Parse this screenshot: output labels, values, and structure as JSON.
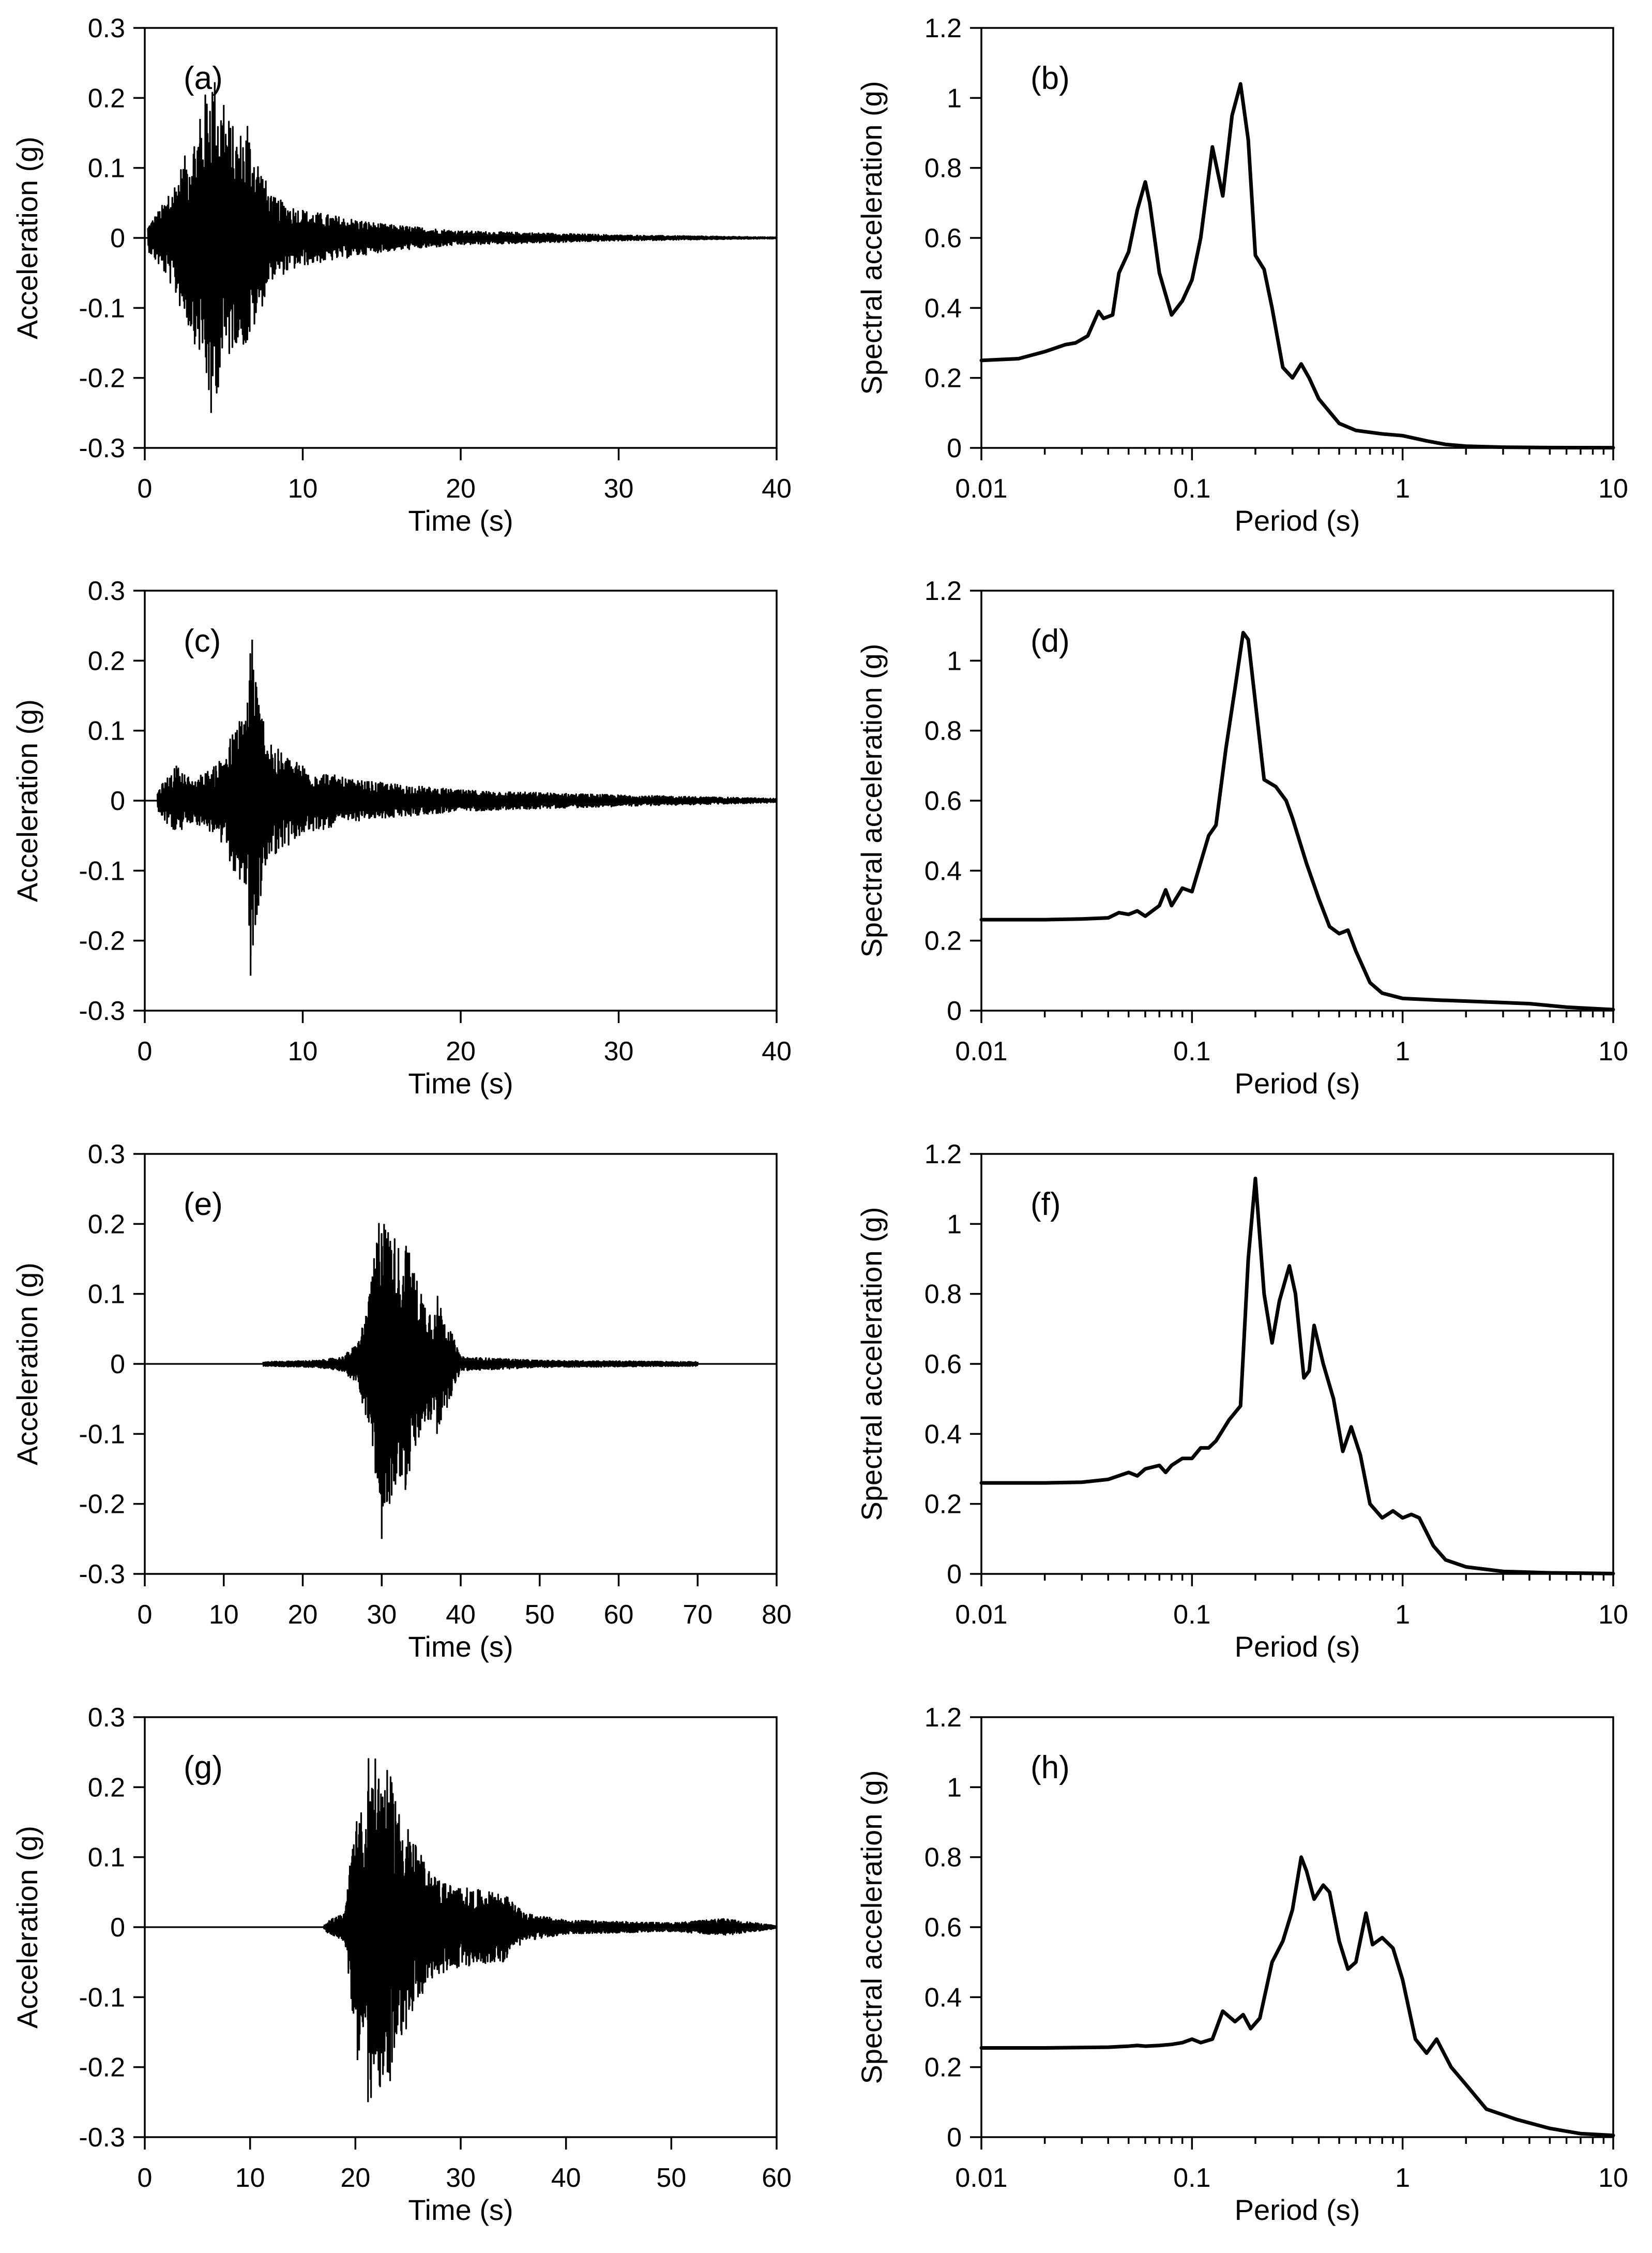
{
  "chart_data": [
    {
      "id": "a",
      "type": "line",
      "label": "(a)",
      "xlabel": "Time (s)",
      "ylabel": "Acceleration (g)",
      "xscale": "linear",
      "xlim": [
        0,
        40
      ],
      "ylim": [
        -0.3,
        0.3
      ],
      "xticks": [
        0,
        10,
        20,
        30,
        40
      ],
      "xtick_labels": [
        "0",
        "10",
        "20",
        "30",
        "40"
      ],
      "yticks": [
        -0.3,
        -0.2,
        -0.1,
        0,
        0.1,
        0.2,
        0.3
      ],
      "ytick_labels": [
        "-0.3",
        "-0.2",
        "-0.1",
        "0",
        "0.1",
        "0.2",
        "0.3"
      ],
      "record": {
        "start": 0.2,
        "end": 40,
        "peaks": [
          [
            1.5,
            0.06
          ],
          [
            3.5,
            0.17
          ],
          [
            4.2,
            -0.25
          ],
          [
            5.0,
            0.19
          ],
          [
            5.8,
            -0.15
          ],
          [
            6.5,
            0.16
          ],
          [
            8,
            0.06
          ],
          [
            10,
            0.04
          ],
          [
            15,
            0.02
          ],
          [
            20,
            0.01
          ],
          [
            30,
            0.004
          ],
          [
            40,
            0.001
          ]
        ]
      }
    },
    {
      "id": "b",
      "type": "line",
      "label": "(b)",
      "xlabel": "Period (s)",
      "ylabel": "Spectral acceleration (g)",
      "xscale": "log",
      "xlim": [
        0.01,
        10
      ],
      "ylim": [
        0,
        1.2
      ],
      "xticks": [
        0.01,
        0.1,
        1,
        10
      ],
      "xtick_labels": [
        "0.01",
        "0.1",
        "1",
        "10"
      ],
      "yticks": [
        0,
        0.2,
        0.4,
        0.6,
        0.8,
        1,
        1.2
      ],
      "ytick_labels": [
        "0",
        "0.2",
        "0.4",
        "0.6",
        "0.8",
        "1",
        "1.2"
      ],
      "x": [
        0.01,
        0.015,
        0.02,
        0.025,
        0.028,
        0.032,
        0.036,
        0.038,
        0.042,
        0.045,
        0.05,
        0.055,
        0.06,
        0.063,
        0.07,
        0.08,
        0.09,
        0.1,
        0.11,
        0.125,
        0.14,
        0.155,
        0.17,
        0.185,
        0.2,
        0.22,
        0.24,
        0.27,
        0.3,
        0.33,
        0.36,
        0.4,
        0.5,
        0.6,
        0.8,
        1.0,
        1.3,
        1.6,
        2.0,
        3.0,
        5.0,
        10.0
      ],
      "y": [
        0.25,
        0.255,
        0.275,
        0.295,
        0.3,
        0.32,
        0.39,
        0.37,
        0.38,
        0.5,
        0.56,
        0.68,
        0.76,
        0.7,
        0.5,
        0.38,
        0.42,
        0.48,
        0.6,
        0.86,
        0.72,
        0.95,
        1.04,
        0.88,
        0.55,
        0.51,
        0.4,
        0.23,
        0.2,
        0.24,
        0.2,
        0.14,
        0.07,
        0.05,
        0.04,
        0.035,
        0.02,
        0.01,
        0.005,
        0.002,
        0.001,
        0.0005
      ]
    },
    {
      "id": "c",
      "type": "line",
      "label": "(c)",
      "xlabel": "Time (s)",
      "ylabel": "Acceleration (g)",
      "xscale": "linear",
      "xlim": [
        0,
        40
      ],
      "ylim": [
        -0.3,
        0.3
      ],
      "xticks": [
        0,
        10,
        20,
        30,
        40
      ],
      "xtick_labels": [
        "0",
        "10",
        "20",
        "30",
        "40"
      ],
      "yticks": [
        -0.3,
        -0.2,
        -0.1,
        0,
        0.1,
        0.2,
        0.3
      ],
      "ytick_labels": [
        "-0.3",
        "-0.2",
        "-0.1",
        "0",
        "0.1",
        "0.2",
        "0.3"
      ],
      "record": {
        "start": 0.8,
        "end": 40,
        "peaks": [
          [
            2,
            0.05
          ],
          [
            3,
            -0.03
          ],
          [
            4.5,
            0.05
          ],
          [
            6.5,
            0.14
          ],
          [
            6.8,
            0.23
          ],
          [
            6.7,
            -0.25
          ],
          [
            7.2,
            -0.15
          ],
          [
            8,
            0.08
          ],
          [
            10,
            0.05
          ],
          [
            13,
            0.03
          ],
          [
            20,
            0.015
          ],
          [
            30,
            0.008
          ],
          [
            40,
            0.003
          ]
        ]
      }
    },
    {
      "id": "d",
      "type": "line",
      "label": "(d)",
      "xlabel": "Period (s)",
      "ylabel": "Spectral acceleration (g)",
      "xscale": "log",
      "xlim": [
        0.01,
        10
      ],
      "ylim": [
        0,
        1.2
      ],
      "xticks": [
        0.01,
        0.1,
        1,
        10
      ],
      "xtick_labels": [
        "0.01",
        "0.1",
        "1",
        "10"
      ],
      "yticks": [
        0,
        0.2,
        0.4,
        0.6,
        0.8,
        1,
        1.2
      ],
      "ytick_labels": [
        "0",
        "0.2",
        "0.4",
        "0.6",
        "0.8",
        "1",
        "1.2"
      ],
      "x": [
        0.01,
        0.02,
        0.03,
        0.04,
        0.045,
        0.05,
        0.055,
        0.06,
        0.07,
        0.075,
        0.08,
        0.09,
        0.1,
        0.12,
        0.13,
        0.145,
        0.16,
        0.175,
        0.185,
        0.2,
        0.22,
        0.25,
        0.28,
        0.3,
        0.35,
        0.4,
        0.45,
        0.5,
        0.55,
        0.6,
        0.7,
        0.8,
        1.0,
        1.5,
        2.5,
        4.0,
        6.0,
        10.0
      ],
      "y": [
        0.26,
        0.26,
        0.262,
        0.265,
        0.28,
        0.275,
        0.285,
        0.27,
        0.3,
        0.345,
        0.3,
        0.35,
        0.34,
        0.5,
        0.53,
        0.75,
        0.92,
        1.08,
        1.06,
        0.88,
        0.66,
        0.64,
        0.6,
        0.55,
        0.42,
        0.32,
        0.24,
        0.22,
        0.23,
        0.17,
        0.08,
        0.05,
        0.035,
        0.03,
        0.025,
        0.02,
        0.01,
        0.003
      ]
    },
    {
      "id": "e",
      "type": "line",
      "label": "(e)",
      "xlabel": "Time (s)",
      "ylabel": "Acceleration (g)",
      "xscale": "linear",
      "xlim": [
        0,
        80
      ],
      "ylim": [
        -0.3,
        0.3
      ],
      "xticks": [
        0,
        10,
        20,
        30,
        40,
        50,
        60,
        70,
        80
      ],
      "xtick_labels": [
        "0",
        "10",
        "20",
        "30",
        "40",
        "50",
        "60",
        "70",
        "80"
      ],
      "yticks": [
        -0.3,
        -0.2,
        -0.1,
        0,
        0.1,
        0.2,
        0.3
      ],
      "ytick_labels": [
        "-0.3",
        "-0.2",
        "-0.1",
        "0",
        "0.1",
        "0.2",
        "0.3"
      ],
      "record": {
        "start": 15,
        "end": 70,
        "peaks": [
          [
            15,
            0.003
          ],
          [
            22,
            0.005
          ],
          [
            25,
            0.01
          ],
          [
            27,
            0.03
          ],
          [
            28.5,
            0.1
          ],
          [
            30.3,
            0.2
          ],
          [
            30,
            -0.25
          ],
          [
            31,
            -0.2
          ],
          [
            33,
            0.15
          ],
          [
            33,
            -0.18
          ],
          [
            35,
            0.1
          ],
          [
            37,
            0.07
          ],
          [
            37,
            -0.1
          ],
          [
            40,
            0.01
          ],
          [
            50,
            0.005
          ],
          [
            60,
            0.004
          ],
          [
            70,
            0.003
          ]
        ]
      }
    },
    {
      "id": "f",
      "type": "line",
      "label": "(f)",
      "xlabel": "Period (s)",
      "ylabel": "Spectral acceleration (g)",
      "xscale": "log",
      "xlim": [
        0.01,
        10
      ],
      "ylim": [
        0,
        1.2
      ],
      "xticks": [
        0.01,
        0.1,
        1,
        10
      ],
      "xtick_labels": [
        "0.01",
        "0.1",
        "1",
        "10"
      ],
      "yticks": [
        0,
        0.2,
        0.4,
        0.6,
        0.8,
        1,
        1.2
      ],
      "ytick_labels": [
        "0",
        "0.2",
        "0.4",
        "0.6",
        "0.8",
        "1",
        "1.2"
      ],
      "x": [
        0.01,
        0.02,
        0.03,
        0.04,
        0.05,
        0.055,
        0.06,
        0.07,
        0.075,
        0.08,
        0.09,
        0.1,
        0.11,
        0.12,
        0.13,
        0.15,
        0.17,
        0.185,
        0.2,
        0.22,
        0.24,
        0.26,
        0.29,
        0.31,
        0.34,
        0.36,
        0.38,
        0.42,
        0.47,
        0.52,
        0.57,
        0.63,
        0.7,
        0.8,
        0.9,
        1.0,
        1.1,
        1.2,
        1.4,
        1.6,
        2.0,
        3.0,
        5.0,
        10.0
      ],
      "y": [
        0.26,
        0.26,
        0.262,
        0.27,
        0.29,
        0.28,
        0.3,
        0.31,
        0.29,
        0.31,
        0.33,
        0.33,
        0.36,
        0.36,
        0.38,
        0.44,
        0.48,
        0.9,
        1.13,
        0.8,
        0.66,
        0.78,
        0.88,
        0.8,
        0.56,
        0.58,
        0.71,
        0.6,
        0.5,
        0.35,
        0.42,
        0.34,
        0.2,
        0.16,
        0.18,
        0.16,
        0.17,
        0.16,
        0.08,
        0.04,
        0.02,
        0.007,
        0.003,
        0.001
      ]
    },
    {
      "id": "g",
      "type": "line",
      "label": "(g)",
      "xlabel": "Time (s)",
      "ylabel": "Acceleration (g)",
      "xscale": "linear",
      "xlim": [
        0,
        60
      ],
      "ylim": [
        -0.3,
        0.3
      ],
      "xticks": [
        0,
        10,
        20,
        30,
        40,
        50,
        60
      ],
      "xtick_labels": [
        "0",
        "10",
        "20",
        "30",
        "40",
        "50",
        "60"
      ],
      "yticks": [
        -0.3,
        -0.2,
        -0.1,
        0,
        0.1,
        0.2,
        0.3
      ],
      "ytick_labels": [
        "-0.3",
        "-0.2",
        "-0.1",
        "0",
        "0.1",
        "0.2",
        "0.3"
      ],
      "record": {
        "start": 17,
        "end": 60,
        "peaks": [
          [
            17.5,
            0.01
          ],
          [
            19,
            0.02
          ],
          [
            20.2,
            -0.19
          ],
          [
            21,
            0.14
          ],
          [
            21.2,
            -0.25
          ],
          [
            23.3,
            -0.22
          ],
          [
            23.8,
            0.18
          ],
          [
            25,
            0.14
          ],
          [
            27,
            0.08
          ],
          [
            29,
            0.06
          ],
          [
            33,
            0.05
          ],
          [
            34,
            -0.05
          ],
          [
            36,
            0.02
          ],
          [
            40,
            0.01
          ],
          [
            50,
            0.006
          ],
          [
            55,
            0.012
          ],
          [
            60,
            0.002
          ]
        ]
      }
    },
    {
      "id": "h",
      "type": "line",
      "label": "(h)",
      "xlabel": "Period (s)",
      "ylabel": "Spectral acceleration (g)",
      "xscale": "log",
      "xlim": [
        0.01,
        10
      ],
      "ylim": [
        0,
        1.2
      ],
      "xticks": [
        0.01,
        0.1,
        1,
        10
      ],
      "xtick_labels": [
        "0.01",
        "0.1",
        "1",
        "10"
      ],
      "yticks": [
        0,
        0.2,
        0.4,
        0.6,
        0.8,
        1,
        1.2
      ],
      "ytick_labels": [
        "0",
        "0.2",
        "0.4",
        "0.6",
        "0.8",
        "1",
        "1.2"
      ],
      "x": [
        0.01,
        0.02,
        0.04,
        0.05,
        0.055,
        0.06,
        0.07,
        0.08,
        0.09,
        0.1,
        0.11,
        0.125,
        0.14,
        0.16,
        0.175,
        0.19,
        0.21,
        0.24,
        0.27,
        0.3,
        0.33,
        0.35,
        0.38,
        0.42,
        0.45,
        0.5,
        0.55,
        0.6,
        0.67,
        0.72,
        0.8,
        0.9,
        1.0,
        1.15,
        1.3,
        1.45,
        1.7,
        2.0,
        2.5,
        3.5,
        5.0,
        7.0,
        10.0
      ],
      "y": [
        0.255,
        0.255,
        0.257,
        0.26,
        0.262,
        0.26,
        0.262,
        0.265,
        0.27,
        0.28,
        0.27,
        0.28,
        0.36,
        0.33,
        0.35,
        0.31,
        0.34,
        0.5,
        0.56,
        0.65,
        0.8,
        0.76,
        0.68,
        0.72,
        0.7,
        0.56,
        0.48,
        0.5,
        0.64,
        0.55,
        0.57,
        0.54,
        0.45,
        0.28,
        0.24,
        0.28,
        0.2,
        0.15,
        0.08,
        0.05,
        0.025,
        0.01,
        0.005
      ]
    }
  ]
}
